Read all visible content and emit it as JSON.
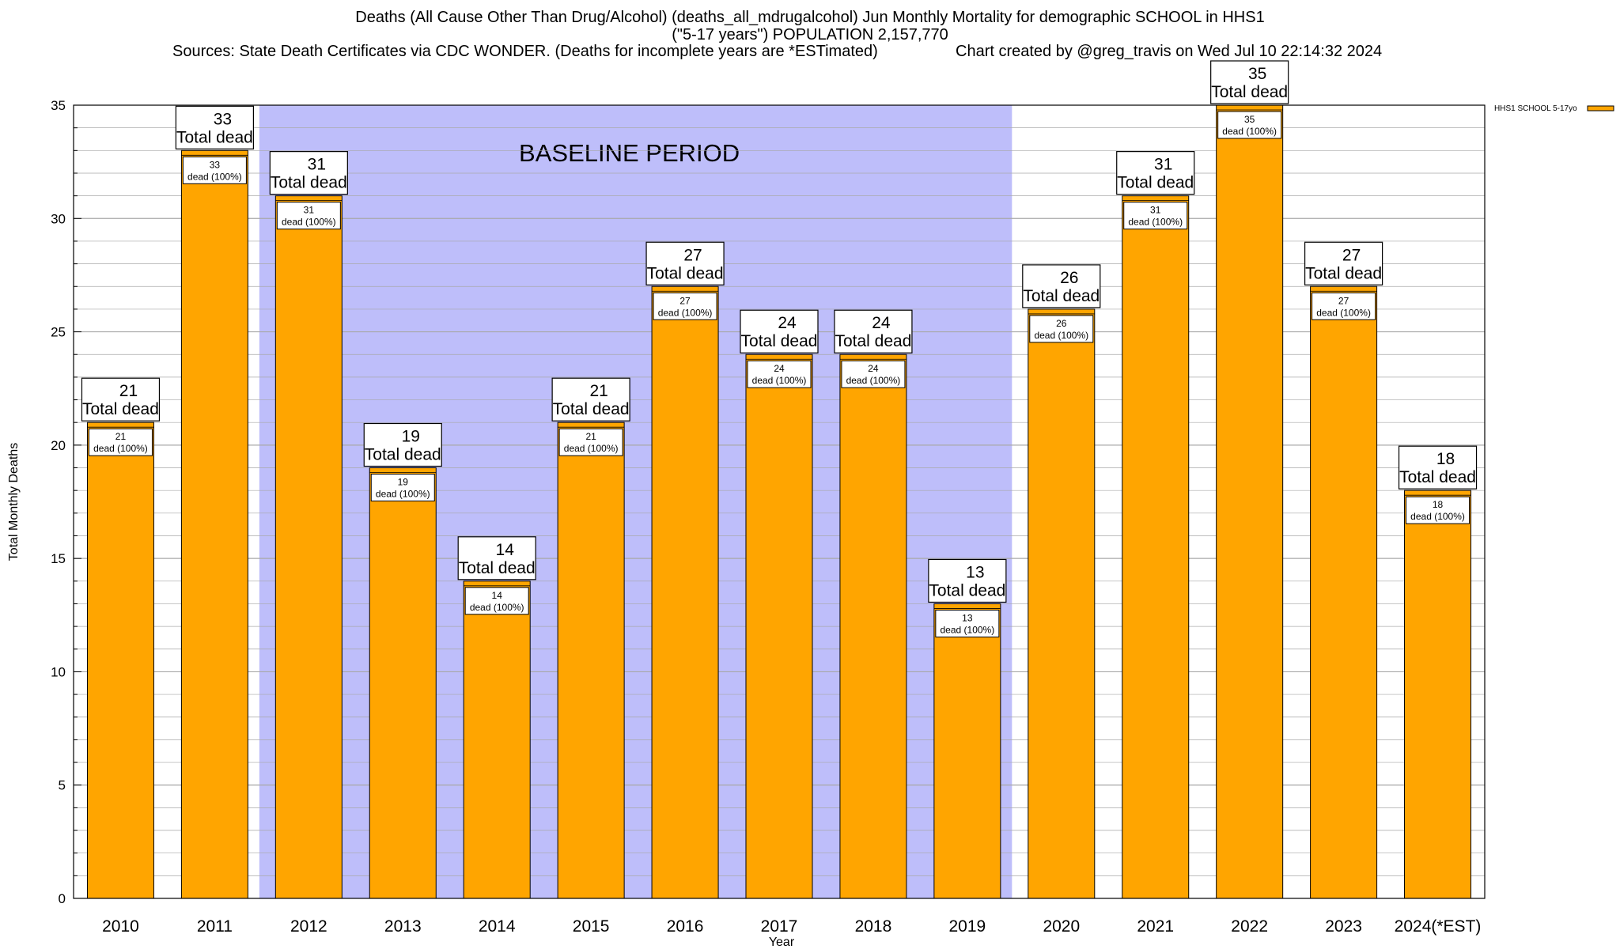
{
  "header": {
    "title_line1": "Deaths (All Cause Other Than Drug/Alcohol) (deaths_all_mdrugalcohol) Jun Monthly Mortality for demographic SCHOOL in HHS1",
    "title_line2": "(\"5-17 years\") POPULATION 2,157,770",
    "sources": "Sources: State Death Certificates via CDC WONDER. (Deaths for incomplete years are *ESTimated)",
    "credit": "Chart created by @greg_travis on Wed Jul 10 22:14:32 2024"
  },
  "colors": {
    "bar_fill": "#FFA500",
    "baseline_band": "#BEBEFA",
    "box_fill": "#FFFFFF",
    "grid": "#A8A8A8"
  },
  "chart_data": {
    "type": "bar",
    "xlabel": "Year",
    "ylabel": "Total Monthly Deaths",
    "ylim": [
      0,
      35
    ],
    "yticks": [
      0,
      5,
      10,
      15,
      20,
      25,
      30,
      35
    ],
    "grid": true,
    "legend_position": "top-right",
    "categories": [
      "2010",
      "2011",
      "2012",
      "2013",
      "2014",
      "2015",
      "2016",
      "2017",
      "2018",
      "2019",
      "2020",
      "2021",
      "2022",
      "2023",
      "2024(*EST)"
    ],
    "series": [
      {
        "name": "HHS1 SCHOOL 5-17yo",
        "values": [
          21,
          33,
          31,
          19,
          14,
          21,
          27,
          24,
          24,
          13,
          26,
          31,
          35,
          27,
          18
        ]
      }
    ],
    "bar_top_label": "Total dead",
    "bar_inner_label": "dead (100%)",
    "annotation": {
      "text": "BASELINE PERIOD",
      "range_start": "2012",
      "range_end": "2019"
    }
  }
}
